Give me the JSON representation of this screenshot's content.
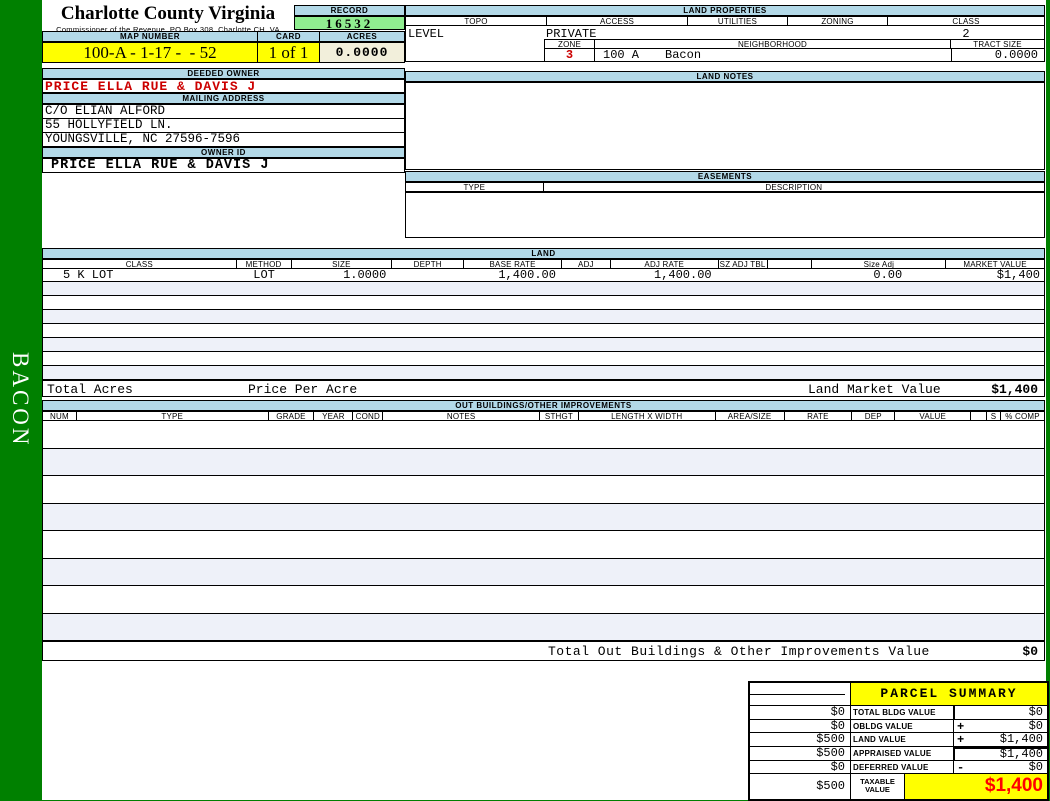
{
  "sidebar": {
    "district": "BACON"
  },
  "header": {
    "county": "Charlotte County Virginia",
    "commissioner": "Commissioner of the Revenue, PO Box 308, Charlotte CH, VA",
    "record_label": "RECORD",
    "record_value": "16532",
    "map_number_label": "MAP NUMBER",
    "map_number": "100-A - 1-17 -  - 52",
    "card_label": "CARD",
    "card_value": "1 of 1",
    "acres_label": "ACRES",
    "acres_value": "0.0000"
  },
  "owner": {
    "deeded_owner_label": "DEEDED OWNER",
    "deeded_owner": "PRICE ELLA RUE & DAVIS J",
    "mailing_address_label": "MAILING ADDRESS",
    "address_line1": "C/O ELIAN ALFORD",
    "address_line2": "55 HOLLYFIELD LN.",
    "address_line3": "YOUNGSVILLE, NC 27596-7596",
    "owner_id_label": "OWNER ID",
    "owner_id": "PRICE ELLA RUE & DAVIS J"
  },
  "land_properties": {
    "title": "LAND PROPERTIES",
    "col_topo": "TOPO",
    "col_access": "ACCESS",
    "col_utilities": "UTILITIES",
    "col_zoning": "ZONING",
    "col_class": "CLASS",
    "topo": "LEVEL",
    "access": "PRIVATE",
    "utilities": "",
    "zoning": "",
    "class": "2",
    "zone_label": "ZONE",
    "zone": "3",
    "neighborhood_label": "NEIGHBORHOOD",
    "neighborhood_code": "100 A",
    "neighborhood_name": "Bacon",
    "tract_size_label": "TRACT SIZE",
    "tract_size": "0.0000"
  },
  "land_notes": {
    "title": "LAND NOTES",
    "text": ""
  },
  "easements": {
    "title": "EASEMENTS",
    "type_label": "TYPE",
    "description_label": "DESCRIPTION"
  },
  "land": {
    "title": "LAND",
    "columns": [
      "CLASS",
      "METHOD",
      "SIZE",
      "DEPTH",
      "BASE RATE",
      "ADJ",
      "ADJ RATE",
      "SZ ADJ TBL",
      "",
      "Size Adj",
      "MARKET VALUE"
    ],
    "rows": [
      {
        "cls": "5 K LOT",
        "method": "LOT",
        "size": "1.0000",
        "depth": "",
        "base_rate": "1,400.00",
        "adj": "",
        "adj_rate": "1,400.00",
        "sz_adj_tbl": "",
        "blank": "",
        "size_adj": "0.00",
        "market_value": "$1,400"
      }
    ],
    "total_acres_label": "Total Acres",
    "price_per_acre_label": "Price Per Acre",
    "land_market_value_label": "Land Market Value",
    "land_market_value": "$1,400"
  },
  "out_buildings": {
    "title": "OUT BUILDINGS/OTHER IMPROVEMENTS",
    "columns": [
      "NUM",
      "TYPE",
      "GRADE",
      "YEAR",
      "COND",
      "NOTES",
      "STHGT",
      "LENGTH X WIDTH",
      "AREA/SIZE",
      "RATE",
      "DEP",
      "VALUE",
      "",
      "S",
      "% COMP"
    ],
    "total_label": "Total Out Buildings & Other Improvements Value",
    "total_value": "$0"
  },
  "parcel_summary": {
    "title": "PARCEL SUMMARY",
    "rows": [
      {
        "left": "$0",
        "label": "TOTAL BLDG VALUE",
        "op": "",
        "value": "$0"
      },
      {
        "left": "$0",
        "label": "OBLDG VALUE",
        "op": "+",
        "value": "$0"
      },
      {
        "left": "$500",
        "label": "LAND VALUE",
        "op": "+",
        "value": "$1,400"
      },
      {
        "left": "$500",
        "label": "APPRAISED VALUE",
        "op": "",
        "value": "$1,400"
      },
      {
        "left": "$0",
        "label": "DEFERRED VALUE",
        "op": "-",
        "value": "$0"
      }
    ],
    "taxable_left": "$500",
    "taxable_label": "TAXABLE VALUE",
    "taxable_value": "$1,400"
  },
  "colors": {
    "sidebar_green": "#008000",
    "band_blue": "#b3d9e8",
    "highlight_yellow": "#ffff00",
    "record_green": "#90ee90",
    "acres_ivory": "#f2efdb",
    "owner_red": "#cc0000",
    "taxable_red": "#ff0000",
    "stripe_tint": "#eef1f9"
  }
}
